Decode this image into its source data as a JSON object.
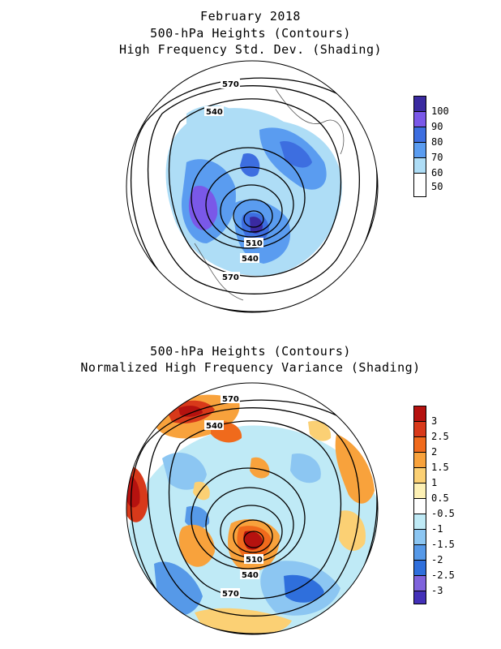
{
  "top": {
    "title_lines": [
      "February 2018",
      "500-hPa Heights (Contours)",
      "High Frequency Std. Dev. (Shading)"
    ],
    "contour_labels": [
      "570",
      "540",
      "510",
      "540",
      "570"
    ],
    "legend": {
      "labels": [
        "100",
        "90",
        "80",
        "70",
        "60",
        "50"
      ],
      "colors": [
        "#3a2aa0",
        "#7a58e8",
        "#3d6ee0",
        "#5a9cf0",
        "#aeddf6",
        "#ffffff"
      ]
    }
  },
  "bottom": {
    "title_lines": [
      "500-hPa Heights (Contours)",
      "Normalized High Frequency Variance (Shading)"
    ],
    "contour_labels": [
      "570",
      "540",
      "510",
      "540",
      "570"
    ],
    "legend": {
      "labels": [
        "3",
        "2.5",
        "2",
        "1.5",
        "1",
        "0.5",
        "-0.5",
        "-1",
        "-1.5",
        "-2",
        "-2.5",
        "-3"
      ],
      "colors": [
        "#b5120f",
        "#d8391a",
        "#f06a1c",
        "#f8a23c",
        "#fbd074",
        "#fdf0b4",
        "#ffffff",
        "#bfeaf6",
        "#8cc6f2",
        "#5699e8",
        "#2f6fdc",
        "#7f63dc",
        "#4330b8"
      ]
    }
  }
}
